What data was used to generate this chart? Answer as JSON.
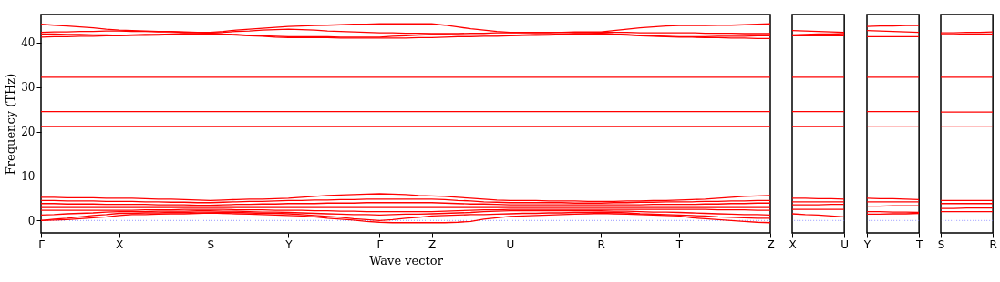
{
  "chart_data": [
    {
      "type": "line",
      "xlabel": "Wave vector",
      "ylabel": "Frequency (THz)",
      "ylim": [
        -2.8,
        46.3
      ],
      "yticks": [
        0,
        10,
        20,
        30,
        40
      ],
      "grid": false,
      "categories": [
        "Γ",
        null,
        null,
        null,
        null,
        null,
        "X",
        null,
        null,
        null,
        null,
        null,
        null,
        "S",
        null,
        null,
        null,
        null,
        null,
        "Y",
        null,
        null,
        null,
        null,
        null,
        null,
        "Γ",
        null,
        null,
        null,
        "Z",
        null,
        null,
        null,
        null,
        null,
        "U",
        null,
        null,
        null,
        null,
        null,
        null,
        "R",
        null,
        null,
        null,
        null,
        null,
        "T",
        null,
        null,
        null,
        null,
        null,
        null,
        "Z"
      ],
      "ref_lines": [
        {
          "axis": "y",
          "value": 0,
          "color": "#8080ff",
          "line_style": "dotted"
        }
      ],
      "series": [
        {
          "color": "#ff0000",
          "values": [
            44.1,
            43.9,
            43.7,
            43.5,
            43.3,
            43.0,
            42.8,
            42.7,
            42.6,
            42.5,
            42.5,
            42.4,
            42.3,
            42.3,
            42.5,
            42.8,
            43.0,
            43.2,
            43.4,
            43.6,
            43.7,
            43.8,
            43.9,
            44.0,
            44.1,
            44.1,
            44.2,
            44.2,
            44.2,
            44.2,
            44.2,
            43.9,
            43.5,
            43.1,
            42.8,
            42.5,
            42.3,
            42.3,
            42.3,
            42.3,
            42.3,
            42.4,
            42.4,
            42.4,
            42.7,
            43.0,
            43.3,
            43.5,
            43.7,
            43.8,
            43.8,
            43.8,
            43.9,
            43.9,
            44.0,
            44.1,
            44.2
          ]
        },
        {
          "color": "#ff0000",
          "values": [
            42.3,
            42.4,
            42.4,
            42.5,
            42.5,
            42.6,
            42.6,
            42.5,
            42.5,
            42.4,
            42.4,
            42.3,
            42.3,
            42.2,
            42.3,
            42.5,
            42.6,
            42.8,
            42.9,
            43.0,
            42.9,
            42.8,
            42.6,
            42.5,
            42.4,
            42.3,
            42.2,
            42.2,
            42.1,
            42.1,
            42.0,
            42.0,
            42.0,
            42.1,
            42.1,
            42.2,
            42.2,
            42.2,
            42.2,
            42.2,
            42.3,
            42.3,
            42.3,
            42.3,
            42.3,
            42.3,
            42.2,
            42.2,
            42.2,
            42.2,
            42.2,
            42.1,
            42.1,
            42.1,
            42.0,
            42.0,
            42.0
          ]
        },
        {
          "color": "#ff0000",
          "values": [
            41.9,
            41.9,
            41.8,
            41.8,
            41.7,
            41.7,
            41.6,
            41.7,
            41.8,
            41.8,
            41.9,
            42.0,
            42.0,
            42.1,
            41.9,
            41.8,
            41.6,
            41.5,
            41.4,
            41.3,
            41.3,
            41.3,
            41.3,
            41.2,
            41.2,
            41.2,
            41.2,
            41.4,
            41.5,
            41.7,
            41.8,
            41.8,
            41.7,
            41.7,
            41.7,
            41.6,
            41.6,
            41.7,
            41.8,
            41.8,
            41.9,
            42.0,
            42.0,
            42.1,
            41.9,
            41.8,
            41.6,
            41.5,
            41.4,
            41.3,
            41.3,
            41.3,
            41.4,
            41.4,
            41.4,
            41.5,
            41.5
          ]
        },
        {
          "color": "#ff0000",
          "values": [
            41.2,
            41.3,
            41.3,
            41.4,
            41.4,
            41.5,
            41.5,
            41.6,
            41.6,
            41.7,
            41.8,
            41.9,
            41.9,
            42.0,
            41.8,
            41.7,
            41.5,
            41.4,
            41.2,
            41.1,
            41.1,
            41.1,
            41.1,
            41.0,
            41.0,
            41.0,
            41.0,
            41.0,
            41.0,
            41.1,
            41.1,
            41.2,
            41.3,
            41.3,
            41.4,
            41.4,
            41.5,
            41.6,
            41.6,
            41.7,
            41.8,
            41.9,
            41.9,
            42.0,
            41.8,
            41.7,
            41.5,
            41.4,
            41.3,
            41.2,
            41.2,
            41.1,
            41.1,
            41.0,
            41.0,
            40.9,
            40.9
          ]
        },
        {
          "color": "#ff0000",
          "values": [
            32.2,
            32.2,
            32.2,
            32.2,
            32.2,
            32.2,
            32.2,
            32.2,
            32.2,
            32.2,
            32.2,
            32.2,
            32.2,
            32.2,
            32.2,
            32.2,
            32.2,
            32.2,
            32.2,
            32.2,
            32.2,
            32.2,
            32.2,
            32.2,
            32.2,
            32.2,
            32.2,
            32.2,
            32.2,
            32.2,
            32.2,
            32.2,
            32.2,
            32.2,
            32.2,
            32.2,
            32.2,
            32.2,
            32.2,
            32.2,
            32.2,
            32.2,
            32.2,
            32.2,
            32.2,
            32.2,
            32.2,
            32.2,
            32.2,
            32.2,
            32.2,
            32.2,
            32.2,
            32.2,
            32.2,
            32.2,
            32.2
          ]
        },
        {
          "color": "#ff0000",
          "values": [
            24.5,
            24.5,
            24.5,
            24.5,
            24.5,
            24.5,
            24.5,
            24.5,
            24.5,
            24.5,
            24.5,
            24.5,
            24.5,
            24.5,
            24.5,
            24.5,
            24.5,
            24.5,
            24.5,
            24.5,
            24.5,
            24.5,
            24.5,
            24.5,
            24.5,
            24.5,
            24.5,
            24.5,
            24.5,
            24.5,
            24.5,
            24.5,
            24.5,
            24.5,
            24.5,
            24.5,
            24.5,
            24.5,
            24.5,
            24.5,
            24.5,
            24.5,
            24.5,
            24.5,
            24.5,
            24.5,
            24.5,
            24.5,
            24.5,
            24.5,
            24.5,
            24.5,
            24.5,
            24.5,
            24.5,
            24.5,
            24.5
          ]
        },
        {
          "color": "#ff0000",
          "values": [
            21.1,
            21.1,
            21.1,
            21.1,
            21.1,
            21.1,
            21.1,
            21.1,
            21.1,
            21.1,
            21.1,
            21.1,
            21.1,
            21.1,
            21.1,
            21.1,
            21.1,
            21.1,
            21.1,
            21.1,
            21.1,
            21.1,
            21.1,
            21.1,
            21.1,
            21.1,
            21.1,
            21.1,
            21.1,
            21.1,
            21.1,
            21.1,
            21.1,
            21.1,
            21.1,
            21.1,
            21.1,
            21.1,
            21.1,
            21.1,
            21.1,
            21.1,
            21.1,
            21.1,
            21.1,
            21.1,
            21.1,
            21.1,
            21.1,
            21.1,
            21.1,
            21.1,
            21.1,
            21.1,
            21.1,
            21.1,
            21.1
          ]
        },
        {
          "color": "#ff0000",
          "values": [
            5.2,
            5.2,
            5.1,
            5.1,
            5.1,
            5.0,
            5.0,
            5.0,
            4.9,
            4.8,
            4.8,
            4.7,
            4.6,
            4.5,
            4.6,
            4.7,
            4.8,
            4.8,
            4.9,
            5.0,
            5.2,
            5.4,
            5.6,
            5.7,
            5.8,
            5.9,
            6.0,
            5.9,
            5.8,
            5.6,
            5.5,
            5.4,
            5.2,
            5.0,
            4.8,
            4.6,
            4.5,
            4.5,
            4.5,
            4.4,
            4.4,
            4.4,
            4.3,
            4.3,
            4.3,
            4.4,
            4.4,
            4.5,
            4.5,
            4.6,
            4.7,
            4.8,
            5.0,
            5.2,
            5.4,
            5.5,
            5.6
          ]
        },
        {
          "color": "#ff0000",
          "values": [
            4.5,
            4.5,
            4.4,
            4.4,
            4.4,
            4.3,
            4.3,
            4.3,
            4.2,
            4.2,
            4.1,
            4.1,
            4.0,
            4.0,
            4.1,
            4.2,
            4.3,
            4.3,
            4.4,
            4.5,
            4.5,
            4.6,
            4.6,
            4.7,
            4.7,
            4.8,
            4.8,
            4.8,
            4.8,
            4.8,
            4.8,
            4.7,
            4.5,
            4.4,
            4.2,
            4.1,
            4.0,
            4.0,
            4.0,
            4.0,
            4.0,
            3.9,
            3.9,
            3.9,
            4.0,
            4.0,
            4.1,
            4.1,
            4.2,
            4.2,
            4.2,
            4.3,
            4.3,
            4.4,
            4.4,
            4.5,
            4.5
          ]
        },
        {
          "color": "#ff0000",
          "values": [
            3.8,
            3.8,
            3.7,
            3.7,
            3.7,
            3.6,
            3.6,
            3.6,
            3.6,
            3.5,
            3.5,
            3.5,
            3.4,
            3.4,
            3.5,
            3.6,
            3.6,
            3.7,
            3.7,
            3.8,
            3.8,
            3.8,
            3.9,
            3.9,
            3.9,
            4.0,
            4.0,
            4.0,
            4.0,
            4.0,
            4.0,
            3.9,
            3.8,
            3.7,
            3.7,
            3.6,
            3.5,
            3.5,
            3.5,
            3.5,
            3.5,
            3.5,
            3.5,
            3.5,
            3.5,
            3.5,
            3.5,
            3.6,
            3.6,
            3.6,
            3.6,
            3.7,
            3.7,
            3.8,
            3.8,
            3.9,
            3.9
          ]
        },
        {
          "color": "#ff0000",
          "values": [
            2.9,
            2.9,
            2.9,
            2.9,
            2.9,
            2.9,
            2.9,
            2.9,
            2.9,
            2.9,
            2.9,
            2.9,
            2.9,
            2.9,
            2.9,
            2.9,
            2.9,
            2.9,
            2.9,
            2.9,
            2.9,
            2.9,
            2.9,
            2.9,
            2.9,
            2.9,
            2.9,
            2.9,
            2.9,
            2.9,
            2.9,
            2.9,
            2.9,
            2.9,
            2.9,
            2.9,
            2.9,
            2.9,
            2.9,
            2.9,
            2.9,
            2.9,
            2.9,
            2.9,
            2.9,
            2.9,
            2.9,
            2.9,
            2.9,
            2.9,
            2.9,
            2.9,
            2.9,
            2.9,
            2.9,
            2.9,
            2.9
          ]
        },
        {
          "color": "#ff0000",
          "values": [
            2.3,
            2.3,
            2.3,
            2.3,
            2.3,
            2.3,
            2.3,
            2.3,
            2.4,
            2.4,
            2.4,
            2.5,
            2.5,
            2.5,
            2.5,
            2.4,
            2.4,
            2.4,
            2.3,
            2.3,
            2.3,
            2.2,
            2.2,
            2.1,
            2.1,
            2.0,
            2.0,
            2.0,
            2.0,
            2.0,
            2.0,
            2.1,
            2.2,
            2.3,
            2.4,
            2.4,
            2.5,
            2.5,
            2.5,
            2.5,
            2.5,
            2.5,
            2.5,
            2.5,
            2.5,
            2.5,
            2.5,
            2.5,
            2.5,
            2.5,
            2.5,
            2.5,
            2.4,
            2.4,
            2.4,
            2.3,
            2.3
          ]
        },
        {
          "color": "#ff0000",
          "values": [
            1.2,
            1.3,
            1.5,
            1.6,
            1.7,
            1.9,
            2.0,
            2.0,
            2.0,
            2.1,
            2.1,
            2.1,
            2.2,
            2.2,
            2.1,
            2.1,
            2.0,
            1.9,
            1.9,
            1.8,
            1.7,
            1.6,
            1.5,
            1.4,
            1.3,
            1.3,
            1.2,
            1.3,
            1.4,
            1.4,
            1.5,
            1.6,
            1.7,
            1.8,
            2.0,
            2.1,
            2.2,
            2.2,
            2.2,
            2.2,
            2.2,
            2.2,
            2.2,
            2.2,
            2.1,
            2.1,
            2.0,
            1.9,
            1.9,
            1.8,
            1.7,
            1.6,
            1.5,
            1.4,
            1.3,
            1.3,
            1.2
          ]
        },
        {
          "color": "#ff0000",
          "values": [
            0,
            0.3,
            0.5,
            0.8,
            1.1,
            1.3,
            1.6,
            1.6,
            1.7,
            1.7,
            1.8,
            1.8,
            1.9,
            1.9,
            1.8,
            1.8,
            1.7,
            1.6,
            1.6,
            1.5,
            1.3,
            1.1,
            0.9,
            0.7,
            0.4,
            0.2,
            0,
            0.2,
            0.5,
            0.7,
            1.0,
            1.1,
            1.2,
            1.3,
            1.3,
            1.4,
            1.5,
            1.6,
            1.6,
            1.7,
            1.7,
            1.8,
            1.8,
            1.9,
            1.8,
            1.7,
            1.5,
            1.4,
            1.3,
            1.2,
            1.1,
            1.0,
            0.8,
            0.7,
            0.6,
            0.5,
            0.5
          ]
        },
        {
          "color": "#ff0000",
          "values": [
            0,
            0.1,
            0.2,
            0.4,
            0.6,
            0.8,
            1.1,
            1.3,
            1.3,
            1.4,
            1.5,
            1.5,
            1.6,
            1.7,
            1.6,
            1.5,
            1.4,
            1.3,
            1.2,
            1.1,
            1.0,
            0.8,
            0.5,
            0.3,
            0.1,
            -0.2,
            -0.4,
            -0.5,
            -0.5,
            -0.5,
            -0.5,
            -0.5,
            -0.4,
            -0.2,
            0.3,
            0.6,
            0.9,
            1.0,
            1.1,
            1.2,
            1.3,
            1.4,
            1.5,
            1.6,
            1.5,
            1.4,
            1.3,
            1.2,
            1.1,
            1.0,
            0.6,
            0.4,
            0.2,
            0.0,
            -0.2,
            -0.4,
            -0.5
          ]
        }
      ]
    },
    {
      "type": "line",
      "ylim": [
        -2.8,
        46.3
      ],
      "yticks": [
        0,
        10,
        20,
        30,
        40
      ],
      "grid": false,
      "tick_labels": "x",
      "categories": [
        "X",
        null,
        null,
        null,
        "U"
      ],
      "ref_lines": [
        {
          "axis": "y",
          "value": 0,
          "color": "#8080ff",
          "line_style": "dotted"
        }
      ],
      "series": [
        {
          "color": "#ff0000",
          "values": [
            42.7,
            42.6,
            42.5,
            42.4,
            42.3
          ]
        },
        {
          "color": "#ff0000",
          "values": [
            41.7,
            41.8,
            41.9,
            41.9,
            42.0
          ]
        },
        {
          "color": "#ff0000",
          "values": [
            41.5,
            41.5,
            41.5,
            41.5,
            41.5
          ]
        },
        {
          "color": "#ff0000",
          "values": [
            32.2,
            32.2,
            32.2,
            32.2,
            32.2
          ]
        },
        {
          "color": "#ff0000",
          "values": [
            24.5,
            24.5,
            24.5,
            24.5,
            24.5
          ]
        },
        {
          "color": "#ff0000",
          "values": [
            21.1,
            21.1,
            21.1,
            21.1,
            21.1
          ]
        },
        {
          "color": "#ff0000",
          "values": [
            5.0,
            5.0,
            4.9,
            4.9,
            4.8
          ]
        },
        {
          "color": "#ff0000",
          "values": [
            4.2,
            4.2,
            4.2,
            4.2,
            4.2
          ]
        },
        {
          "color": "#ff0000",
          "values": [
            3.5,
            3.5,
            3.5,
            3.6,
            3.6
          ]
        },
        {
          "color": "#ff0000",
          "values": [
            2.5,
            2.5,
            2.5,
            2.5,
            2.5
          ]
        },
        {
          "color": "#ff0000",
          "values": [
            1.5,
            1.3,
            1.2,
            1.0,
            0.8
          ]
        }
      ]
    },
    {
      "type": "line",
      "ylim": [
        -2.8,
        46.3
      ],
      "yticks": [
        0,
        10,
        20,
        30,
        40
      ],
      "grid": false,
      "tick_labels": "x",
      "categories": [
        "Y",
        null,
        null,
        null,
        "T"
      ],
      "ref_lines": [
        {
          "axis": "y",
          "value": 0,
          "color": "#8080ff",
          "line_style": "dotted"
        }
      ],
      "series": [
        {
          "color": "#ff0000",
          "values": [
            43.6,
            43.7,
            43.7,
            43.8,
            43.8
          ]
        },
        {
          "color": "#ff0000",
          "values": [
            42.7,
            42.6,
            42.5,
            42.4,
            42.3
          ]
        },
        {
          "color": "#ff0000",
          "values": [
            41.3,
            41.3,
            41.3,
            41.3,
            41.3
          ]
        },
        {
          "color": "#ff0000",
          "values": [
            32.2,
            32.2,
            32.2,
            32.2,
            32.2
          ]
        },
        {
          "color": "#ff0000",
          "values": [
            24.5,
            24.5,
            24.5,
            24.5,
            24.5
          ]
        },
        {
          "color": "#ff0000",
          "values": [
            21.2,
            21.2,
            21.2,
            21.2,
            21.2
          ]
        },
        {
          "color": "#ff0000",
          "values": [
            5.0,
            4.9,
            4.9,
            4.8,
            4.7
          ]
        },
        {
          "color": "#ff0000",
          "values": [
            4.2,
            4.2,
            4.2,
            4.2,
            4.2
          ]
        },
        {
          "color": "#ff0000",
          "values": [
            3.2,
            3.2,
            3.3,
            3.3,
            3.3
          ]
        },
        {
          "color": "#ff0000",
          "values": [
            2.0,
            2.0,
            1.9,
            1.9,
            1.8
          ]
        },
        {
          "color": "#ff0000",
          "values": [
            1.4,
            1.4,
            1.5,
            1.5,
            1.6
          ]
        }
      ]
    },
    {
      "type": "line",
      "ylim": [
        -2.8,
        46.3
      ],
      "yticks": [
        0,
        10,
        20,
        30,
        40
      ],
      "grid": false,
      "tick_labels": "x",
      "categories": [
        "S",
        null,
        null,
        null,
        "R"
      ],
      "ref_lines": [
        {
          "axis": "y",
          "value": 0,
          "color": "#8080ff",
          "line_style": "dotted"
        }
      ],
      "series": [
        {
          "color": "#ff0000",
          "values": [
            42.2,
            42.2,
            42.3,
            42.3,
            42.4
          ]
        },
        {
          "color": "#ff0000",
          "values": [
            41.8,
            41.8,
            41.9,
            41.9,
            41.9
          ]
        },
        {
          "color": "#ff0000",
          "values": [
            32.2,
            32.2,
            32.2,
            32.2,
            32.2
          ]
        },
        {
          "color": "#ff0000",
          "values": [
            24.4,
            24.4,
            24.4,
            24.4,
            24.4
          ]
        },
        {
          "color": "#ff0000",
          "values": [
            21.2,
            21.2,
            21.2,
            21.2,
            21.2
          ]
        },
        {
          "color": "#ff0000",
          "values": [
            4.5,
            4.5,
            4.5,
            4.5,
            4.5
          ]
        },
        {
          "color": "#ff0000",
          "values": [
            3.8,
            3.8,
            3.8,
            3.8,
            3.8
          ]
        },
        {
          "color": "#ff0000",
          "values": [
            2.7,
            2.7,
            2.8,
            2.8,
            2.8
          ]
        },
        {
          "color": "#ff0000",
          "values": [
            2.0,
            2.0,
            2.0,
            2.0,
            2.0
          ]
        }
      ]
    }
  ]
}
